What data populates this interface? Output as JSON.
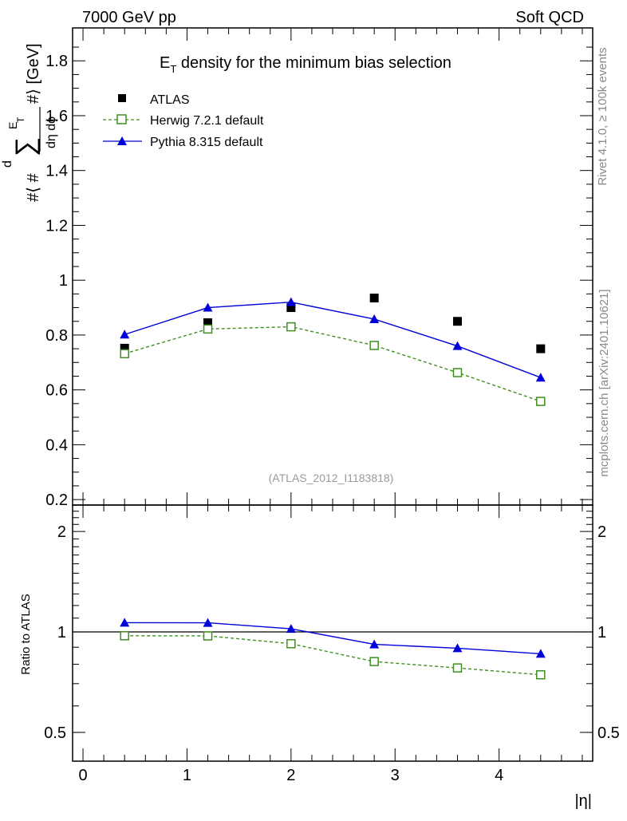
{
  "header": {
    "energy": "7000 GeV pp",
    "process": "Soft QCD"
  },
  "side_labels": {
    "rivet": "Rivet 4.1.0, ≥ 100k events",
    "mcplots": "mcplots.cern.ch [arXiv:2401.10621]"
  },
  "chart_data": [
    {
      "type": "scatter",
      "title_main": "E",
      "title_sub": "T",
      "title_rest": " density  for the minimum bias selection",
      "ylabel": "#⟨ # d∑E_T / dη dϕ #⟩ [GeV]",
      "ylabel_parts": {
        "d": "d",
        "sum": "∑",
        "E": "E",
        "T": "T",
        "num_prefix": "#⟨ #",
        "denominator": "dη dϕ",
        "suffix": "#⟩ [GeV]"
      },
      "watermark": "(ATLAS_2012_I1183818)",
      "xlim": [
        -0.1,
        4.9
      ],
      "ylim": [
        0.18,
        1.92
      ],
      "yticks": [
        "0.2",
        "0.4",
        "0.6",
        "0.8",
        "1",
        "1.2",
        "1.4",
        "1.6",
        "1.8"
      ],
      "x": [
        0.4,
        1.2,
        2.0,
        2.8,
        3.6,
        4.4
      ],
      "series": [
        {
          "name": "ATLAS",
          "marker": "square-filled",
          "color": "#000000",
          "values": [
            0.752,
            0.845,
            0.9,
            0.935,
            0.85,
            0.75
          ]
        },
        {
          "name": "Herwig 7.2.1 default",
          "marker": "square-open",
          "color": "#3f8f1f",
          "dashed": true,
          "values": [
            0.732,
            0.822,
            0.83,
            0.762,
            0.663,
            0.558
          ]
        },
        {
          "name": "Pythia 8.315 default",
          "marker": "triangle",
          "color": "#0000d8",
          "values": [
            0.802,
            0.9,
            0.92,
            0.858,
            0.76,
            0.645
          ]
        }
      ]
    },
    {
      "type": "line",
      "ylabel": "Ratio to ATLAS",
      "xlabel": "|η|",
      "xlim": [
        -0.1,
        4.9
      ],
      "ylim_log": [
        0.41,
        2.4
      ],
      "xticks": [
        "0",
        "1",
        "2",
        "3",
        "4"
      ],
      "yticks": [
        "0.5",
        "1",
        "2"
      ],
      "reference": 1.0,
      "x": [
        0.4,
        1.2,
        2.0,
        2.8,
        3.6,
        4.4
      ],
      "series": [
        {
          "name": "Herwig 7.2.1 default",
          "color": "#3f8f1f",
          "dashed": true,
          "values": [
            0.974,
            0.973,
            0.922,
            0.815,
            0.78,
            0.744
          ]
        },
        {
          "name": "Pythia 8.315 default",
          "color": "#0000d8",
          "values": [
            1.066,
            1.065,
            1.022,
            0.918,
            0.894,
            0.86
          ]
        }
      ]
    }
  ]
}
